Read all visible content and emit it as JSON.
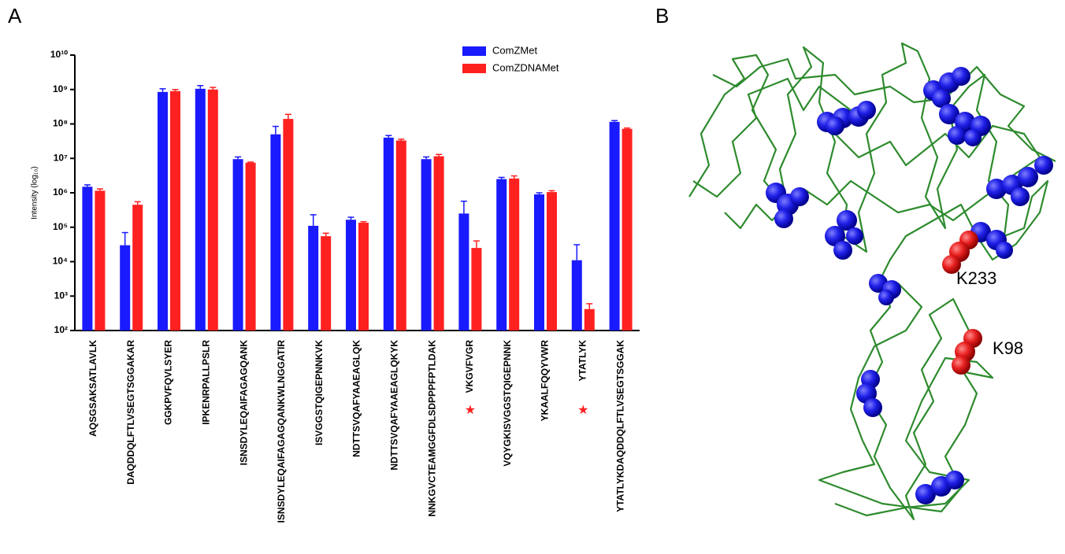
{
  "panel_labels": [
    "A",
    "B"
  ],
  "structure_labels": [
    "K233",
    "K98"
  ],
  "chart_data": {
    "type": "bar",
    "y_label": "Intensity (log₁₀)",
    "yscale": "log",
    "ylim": [
      100,
      10000000000
    ],
    "yticks": [
      {
        "value": 100,
        "label": "10²"
      },
      {
        "value": 1000,
        "label": "10³"
      },
      {
        "value": 10000,
        "label": "10⁴"
      },
      {
        "value": 100000,
        "label": "10⁵"
      },
      {
        "value": 1000000,
        "label": "10⁶"
      },
      {
        "value": 10000000,
        "label": "10⁷"
      },
      {
        "value": 100000000,
        "label": "10⁸"
      },
      {
        "value": 1000000000,
        "label": "10⁹"
      },
      {
        "value": 10000000000,
        "label": "10¹⁰"
      }
    ],
    "legend": "upper right",
    "categories": [
      "AQSGSAKSATLAVLK",
      "DAQDDQLFTLVSEGTSGGAKAR",
      "GGKPVFQVLSYER",
      "IPKENRPALLPSLR",
      "ISNSDYLEQAIFAGAGQANK",
      "ISNSDYLEQAIFAGAGQANKWLNGGATIR",
      "ISVGGSTQIGEPNNKVK",
      "NDTTSVQAFYAAEAGLQK",
      "NDTTSVQAFYAAEAGLQKYK",
      "NNKGVCTEAMGGFDLSDPPPFPTLDAK",
      "VKGVFVGR",
      "VQYGKISVGGSTQIGEPNNK",
      "YKAALFQQYVWR",
      "YTATLYK",
      "YTATLYKDAQDDQLFTLVSEGTSGGAK"
    ],
    "series": [
      {
        "name": "ComZMet",
        "color": "#1a1aff",
        "values": [
          1500000,
          30000,
          850000000,
          1050000000,
          9500000,
          50000000,
          110000,
          165000,
          40000000,
          9500000,
          250000,
          2500000,
          900000,
          11000,
          115000000
        ],
        "errors": [
          200000,
          40000,
          200000000,
          250000000,
          1500000,
          35000000,
          120000,
          30000,
          6000000,
          1500000,
          320000,
          300000,
          100000,
          20000,
          10000000
        ]
      },
      {
        "name": "ComZDNAMet",
        "color": "#ff2020",
        "values": [
          1150000,
          450000,
          900000000,
          1000000000,
          7500000,
          140000000,
          55000,
          135000,
          33000000,
          11500000,
          25000,
          2600000,
          1050000,
          420,
          72000000
        ],
        "errors": [
          150000,
          100000,
          100000000,
          150000000,
          300000,
          50000000,
          12000,
          10000,
          3000000,
          1500000,
          15000,
          500000,
          100000,
          180,
          4000000
        ]
      }
    ],
    "annotations": [
      {
        "text": "★",
        "x": "VKGVFVGR"
      },
      {
        "text": "★",
        "x": "YTATLYK"
      }
    ]
  }
}
